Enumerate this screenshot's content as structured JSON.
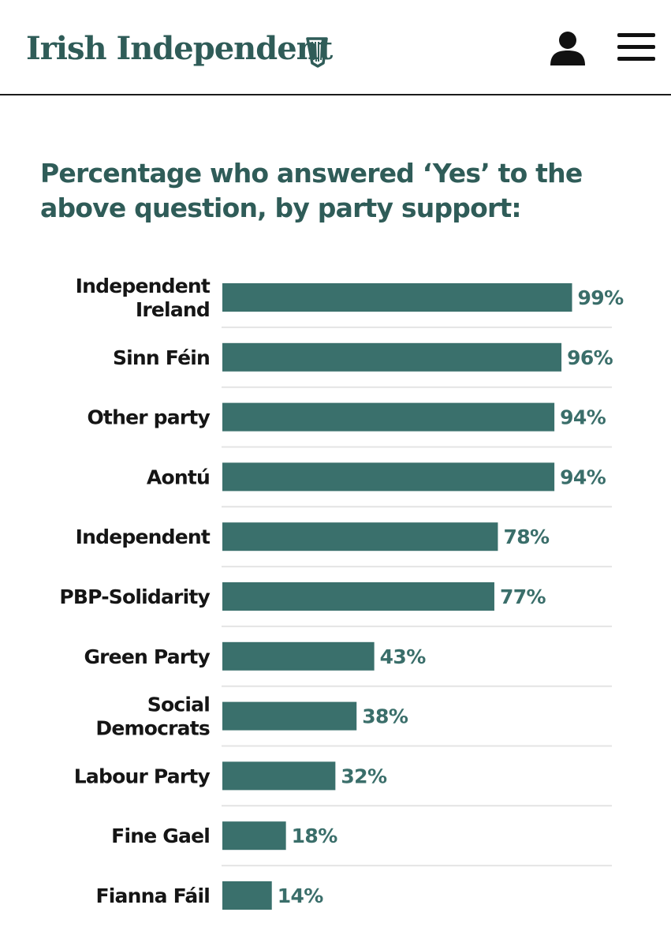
{
  "header": {
    "logo_text": "Irish Independent",
    "brand_color": "#2f5c58",
    "harp_icon": "harp-icon",
    "account_icon": "user-icon",
    "menu_icon": "hamburger-menu-icon"
  },
  "chart_data": {
    "type": "bar",
    "orientation": "horizontal",
    "title": "Percentage who answered ‘Yes’ to the above question, by party support:",
    "categories": [
      "Independent Ireland",
      "Sinn Féin",
      "Other party",
      "Aontú",
      "Independent",
      "PBP-Solidarity",
      "Green Party",
      "Social Democrats",
      "Labour Party",
      "Fine Gael",
      "Fianna Fáil"
    ],
    "label_lines": [
      [
        "Independent",
        "Ireland"
      ],
      [
        "Sinn Féin"
      ],
      [
        "Other party"
      ],
      [
        "Aontú"
      ],
      [
        "Independent"
      ],
      [
        "PBP-Solidarity"
      ],
      [
        "Green Party"
      ],
      [
        "Social",
        "Democrats"
      ],
      [
        "Labour Party"
      ],
      [
        "Fine Gael"
      ],
      [
        "Fianna Fáil"
      ]
    ],
    "values": [
      99,
      96,
      94,
      94,
      78,
      77,
      43,
      38,
      32,
      18,
      14
    ],
    "value_labels": [
      "99%",
      "96%",
      "94%",
      "94%",
      "78%",
      "77%",
      "43%",
      "38%",
      "32%",
      "18%",
      "14%"
    ],
    "unit": "%",
    "xlim": [
      0,
      100
    ],
    "xlabel": "",
    "ylabel": "",
    "grid": false,
    "bar_color": "#3a706c",
    "value_label_color": "#3a6e6a",
    "separator_color": "#e4e4e4"
  }
}
